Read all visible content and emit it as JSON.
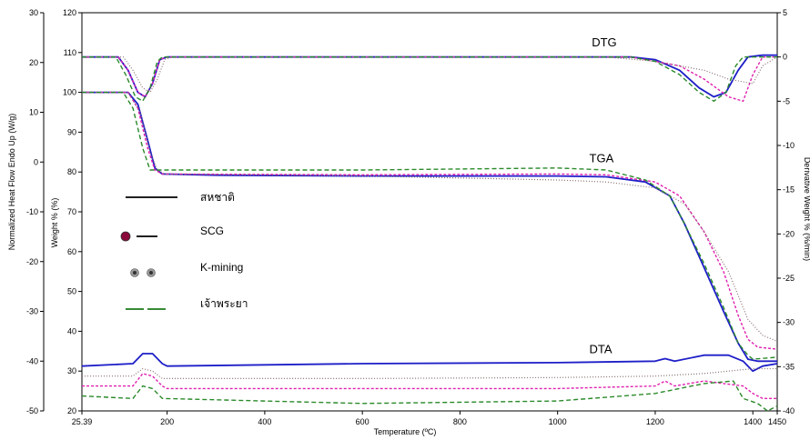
{
  "chart_data": {
    "type": "line",
    "xlabel": "Temperature (ºC)",
    "ylabel_left_outer": "Normalized Heat Flow Endo Up (W/g)",
    "ylabel_left_inner": "Weight % (%)",
    "ylabel_right": "Derivative Weight % (%/min)",
    "x_ticks": [
      25.39,
      200,
      400,
      600,
      800,
      1000,
      1200,
      1400,
      1450
    ],
    "x_tick_labels": [
      "25.39",
      "200",
      "400",
      "600",
      "800",
      "1000",
      "1200",
      "1400",
      "1450"
    ],
    "xlim": [
      25.39,
      1450
    ],
    "y_heatflow_ticks": [
      30,
      20,
      10,
      0,
      -10,
      -20,
      -30,
      -40,
      -50
    ],
    "y_heatflow_lim": [
      -50,
      30
    ],
    "y_weight_ticks": [
      120,
      110,
      100,
      90,
      80,
      70,
      60,
      50,
      40,
      30,
      20
    ],
    "y_weight_lim": [
      20,
      120
    ],
    "y_deriv_ticks": [
      5,
      0,
      -5,
      -10,
      -15,
      -20,
      -25,
      -30,
      -35,
      -40
    ],
    "y_deriv_lim": [
      -40,
      5
    ],
    "curve_labels": [
      {
        "text": "DTG",
        "x": 1070,
        "axis": "weight",
        "y": 111.5
      },
      {
        "text": "TGA",
        "x": 1065,
        "axis": "weight",
        "y": 82.5
      },
      {
        "text": "DTA",
        "x": 1065,
        "axis": "weight",
        "y": 34.5
      }
    ],
    "legend": [
      {
        "label": "สหชาติ",
        "style": "solid",
        "marker": false,
        "color": "#000000"
      },
      {
        "label": "SCG",
        "style": "solid",
        "marker": true,
        "marker_color": "#8a0a3c",
        "color": "#000000"
      },
      {
        "label": "K-mining",
        "style": "dotted-circles",
        "marker": true,
        "marker_color": "#333333",
        "color": "#555555"
      },
      {
        "label": "เจ้าพระยา",
        "style": "dashed",
        "marker": false,
        "color": "#1a7a1a"
      }
    ],
    "series": [
      {
        "name": "สหชาติ",
        "color": "#1e1ec8",
        "dash": "",
        "width": 1.8,
        "tga": [
          [
            25.39,
            100
          ],
          [
            120,
            100
          ],
          [
            140,
            97
          ],
          [
            160,
            88
          ],
          [
            175,
            81
          ],
          [
            190,
            79.5
          ],
          [
            300,
            79.2
          ],
          [
            600,
            79
          ],
          [
            1000,
            79
          ],
          [
            1100,
            78.8
          ],
          [
            1180,
            77.5
          ],
          [
            1230,
            74
          ],
          [
            1260,
            67
          ],
          [
            1300,
            56
          ],
          [
            1340,
            45
          ],
          [
            1370,
            37
          ],
          [
            1390,
            33
          ],
          [
            1410,
            32.5
          ],
          [
            1450,
            32.5
          ]
        ],
        "dtg": [
          [
            25.39,
            0
          ],
          [
            100,
            0
          ],
          [
            120,
            -1.5
          ],
          [
            140,
            -4
          ],
          [
            155,
            -4.5
          ],
          [
            170,
            -3
          ],
          [
            185,
            -0.3
          ],
          [
            200,
            0
          ],
          [
            800,
            0
          ],
          [
            1150,
            0
          ],
          [
            1200,
            -0.3
          ],
          [
            1250,
            -1.5
          ],
          [
            1290,
            -3.5
          ],
          [
            1320,
            -4.5
          ],
          [
            1345,
            -4
          ],
          [
            1370,
            -1.5
          ],
          [
            1390,
            0
          ],
          [
            1420,
            0.2
          ],
          [
            1450,
            0.2
          ]
        ],
        "dta": [
          [
            25.39,
            -41
          ],
          [
            130,
            -40.5
          ],
          [
            150,
            -38.5
          ],
          [
            170,
            -38.5
          ],
          [
            190,
            -40.5
          ],
          [
            200,
            -41
          ],
          [
            600,
            -40.5
          ],
          [
            1000,
            -40.3
          ],
          [
            1200,
            -40
          ],
          [
            1220,
            -39.5
          ],
          [
            1240,
            -40
          ],
          [
            1300,
            -38.8
          ],
          [
            1350,
            -38.8
          ],
          [
            1380,
            -40
          ],
          [
            1400,
            -42
          ],
          [
            1420,
            -41
          ],
          [
            1450,
            -40.5
          ]
        ]
      },
      {
        "name": "SCG",
        "color": "#e020b0",
        "dash": "3,2",
        "width": 1.4,
        "tga": [
          [
            25.39,
            100
          ],
          [
            120,
            100
          ],
          [
            140,
            96
          ],
          [
            160,
            86
          ],
          [
            175,
            80.5
          ],
          [
            190,
            79.5
          ],
          [
            600,
            79.3
          ],
          [
            1000,
            79.5
          ],
          [
            1100,
            79.3
          ],
          [
            1200,
            77.5
          ],
          [
            1250,
            74
          ],
          [
            1300,
            65
          ],
          [
            1340,
            55
          ],
          [
            1370,
            44
          ],
          [
            1390,
            38
          ],
          [
            1410,
            36
          ],
          [
            1450,
            35.5
          ]
        ],
        "dtg": [
          [
            25.39,
            0
          ],
          [
            100,
            0
          ],
          [
            120,
            -1.5
          ],
          [
            140,
            -4
          ],
          [
            155,
            -4.5
          ],
          [
            170,
            -3
          ],
          [
            185,
            -0.3
          ],
          [
            200,
            0
          ],
          [
            1150,
            0
          ],
          [
            1250,
            -1
          ],
          [
            1300,
            -2.5
          ],
          [
            1350,
            -4.5
          ],
          [
            1380,
            -5
          ],
          [
            1400,
            -2
          ],
          [
            1420,
            0
          ],
          [
            1450,
            0
          ]
        ],
        "dta": [
          [
            25.39,
            -45
          ],
          [
            130,
            -45
          ],
          [
            150,
            -42.5
          ],
          [
            170,
            -43
          ],
          [
            190,
            -45
          ],
          [
            200,
            -45.5
          ],
          [
            600,
            -45.5
          ],
          [
            1000,
            -45.5
          ],
          [
            1200,
            -45
          ],
          [
            1220,
            -44
          ],
          [
            1240,
            -45
          ],
          [
            1300,
            -44
          ],
          [
            1380,
            -45
          ],
          [
            1400,
            -46.5
          ],
          [
            1420,
            -47.5
          ],
          [
            1450,
            -47.5
          ]
        ]
      },
      {
        "name": "K-mining",
        "color": "#8a7070",
        "dash": "1,2",
        "width": 1.2,
        "tga": [
          [
            25.39,
            100
          ],
          [
            120,
            100
          ],
          [
            145,
            95
          ],
          [
            165,
            85
          ],
          [
            180,
            80.5
          ],
          [
            195,
            79.5
          ],
          [
            600,
            79
          ],
          [
            1000,
            78
          ],
          [
            1100,
            77.5
          ],
          [
            1200,
            76
          ],
          [
            1260,
            72
          ],
          [
            1300,
            65
          ],
          [
            1350,
            55
          ],
          [
            1390,
            43
          ],
          [
            1420,
            39
          ],
          [
            1450,
            37.5
          ]
        ],
        "dtg": [
          [
            25.39,
            0
          ],
          [
            110,
            0
          ],
          [
            130,
            -1.5
          ],
          [
            150,
            -3.5
          ],
          [
            165,
            -4
          ],
          [
            180,
            -2.5
          ],
          [
            195,
            -0.3
          ],
          [
            210,
            0
          ],
          [
            1100,
            0
          ],
          [
            1200,
            -0.5
          ],
          [
            1300,
            -1.5
          ],
          [
            1350,
            -2.5
          ],
          [
            1400,
            -3
          ],
          [
            1420,
            -1
          ],
          [
            1450,
            0
          ]
        ],
        "dta": [
          [
            25.39,
            -43
          ],
          [
            130,
            -43
          ],
          [
            150,
            -41.5
          ],
          [
            170,
            -42
          ],
          [
            190,
            -43.5
          ],
          [
            600,
            -43.5
          ],
          [
            1000,
            -43.3
          ],
          [
            1200,
            -43
          ],
          [
            1300,
            -42.5
          ],
          [
            1400,
            -41.5
          ],
          [
            1450,
            -41.5
          ]
        ]
      },
      {
        "name": "เจ้าพระยา",
        "color": "#2a8a2a",
        "dash": "5,3",
        "width": 1.4,
        "tga": [
          [
            25.39,
            100
          ],
          [
            110,
            100
          ],
          [
            130,
            96
          ],
          [
            150,
            86
          ],
          [
            165,
            80.5
          ],
          [
            180,
            80.5
          ],
          [
            600,
            80.5
          ],
          [
            1000,
            81
          ],
          [
            1100,
            80.5
          ],
          [
            1180,
            78
          ],
          [
            1230,
            74
          ],
          [
            1260,
            67
          ],
          [
            1300,
            57
          ],
          [
            1340,
            46
          ],
          [
            1370,
            37
          ],
          [
            1390,
            34
          ],
          [
            1400,
            33
          ],
          [
            1450,
            33.5
          ]
        ],
        "dtg": [
          [
            25.39,
            0
          ],
          [
            95,
            0
          ],
          [
            115,
            -2
          ],
          [
            135,
            -4.5
          ],
          [
            150,
            -5
          ],
          [
            165,
            -3.5
          ],
          [
            180,
            -0.5
          ],
          [
            190,
            0
          ],
          [
            1150,
            0
          ],
          [
            1200,
            -0.5
          ],
          [
            1250,
            -2
          ],
          [
            1290,
            -4
          ],
          [
            1320,
            -5
          ],
          [
            1345,
            -4
          ],
          [
            1365,
            -1
          ],
          [
            1380,
            0
          ],
          [
            1450,
            0
          ]
        ],
        "dta": [
          [
            25.39,
            -47
          ],
          [
            130,
            -47.5
          ],
          [
            150,
            -45
          ],
          [
            170,
            -45.5
          ],
          [
            190,
            -47.5
          ],
          [
            600,
            -48.5
          ],
          [
            1000,
            -48
          ],
          [
            1200,
            -46.5
          ],
          [
            1300,
            -44.5
          ],
          [
            1360,
            -44
          ],
          [
            1380,
            -47.5
          ],
          [
            1410,
            -48.5
          ],
          [
            1430,
            -50
          ],
          [
            1450,
            -49
          ]
        ]
      }
    ]
  }
}
